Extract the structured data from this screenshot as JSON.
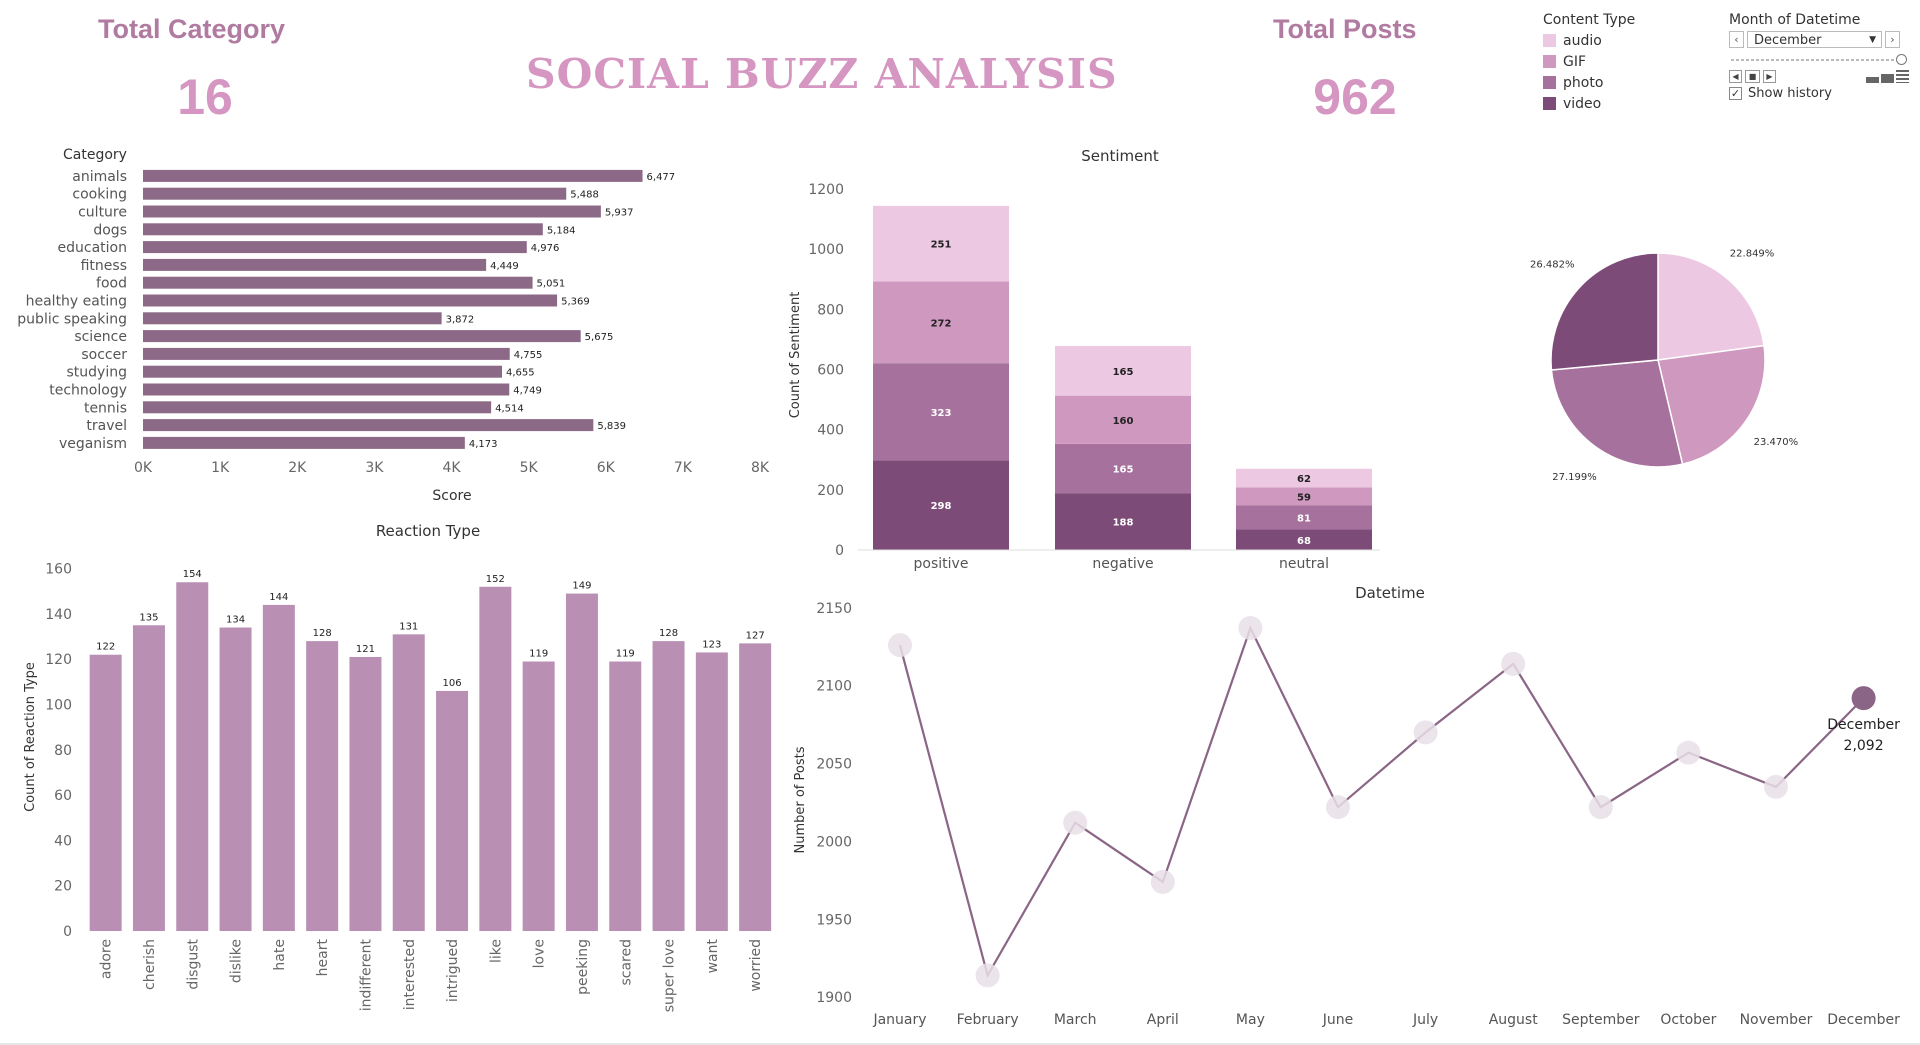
{
  "header": {
    "title": "SOCIAL BUZZ ANALYSIS",
    "kpi_category_label": "Total Category",
    "kpi_category_value": "16",
    "kpi_posts_label": "Total Posts",
    "kpi_posts_value": "962"
  },
  "legend": {
    "title": "Content Type",
    "items": [
      {
        "label": "audio",
        "color": "#ecc8e3"
      },
      {
        "label": "GIF",
        "color": "#cf98bf"
      },
      {
        "label": "photo",
        "color": "#a6719d"
      },
      {
        "label": "video",
        "color": "#7d4b78"
      }
    ]
  },
  "filter": {
    "title": "Month of Datetime",
    "selected": "December",
    "show_history_label": "Show history",
    "show_history_checked": true
  },
  "chart_data": [
    {
      "id": "category",
      "type": "bar",
      "orientation": "horizontal",
      "title": "",
      "header_label": "Category",
      "xlabel": "Score",
      "categories": [
        "animals",
        "cooking",
        "culture",
        "dogs",
        "education",
        "fitness",
        "food",
        "healthy eating",
        "public speaking",
        "science",
        "soccer",
        "studying",
        "technology",
        "tennis",
        "travel",
        "veganism"
      ],
      "values": [
        6477,
        5488,
        5937,
        5184,
        4976,
        4449,
        5051,
        5369,
        3872,
        5675,
        4755,
        4655,
        4749,
        4514,
        5839,
        4173
      ],
      "data_labels": [
        "6,477",
        "5,488",
        "5,937",
        "5,184",
        "4,976",
        "4,449",
        "5,051",
        "5,369",
        "3,872",
        "5,675",
        "4,755",
        "4,655",
        "4,749",
        "4,514",
        "5,839",
        "4,173"
      ],
      "xlim": [
        0,
        8000
      ],
      "xticks": [
        0,
        1000,
        2000,
        3000,
        4000,
        5000,
        6000,
        7000,
        8000
      ],
      "xtick_labels": [
        "0K",
        "1K",
        "2K",
        "3K",
        "4K",
        "5K",
        "6K",
        "7K",
        "8K"
      ],
      "color": "#8c6a87"
    },
    {
      "id": "sentiment",
      "type": "bar",
      "stacked": true,
      "title": "Sentiment",
      "ylabel": "Count of Sentiment",
      "categories": [
        "positive",
        "negative",
        "neutral"
      ],
      "series": [
        {
          "name": "video",
          "values": [
            298,
            188,
            68
          ],
          "color": "#7d4b78"
        },
        {
          "name": "photo",
          "values": [
            323,
            165,
            81
          ],
          "color": "#a6719d"
        },
        {
          "name": "GIF",
          "values": [
            272,
            160,
            59
          ],
          "color": "#cf98bf"
        },
        {
          "name": "audio",
          "values": [
            251,
            165,
            62
          ],
          "color": "#ecc8e3"
        }
      ],
      "ylim": [
        0,
        1250
      ],
      "yticks": [
        0,
        200,
        400,
        600,
        800,
        1000,
        1200
      ]
    },
    {
      "id": "content_share",
      "type": "pie",
      "title": "",
      "slices": [
        {
          "name": "audio",
          "value": 22.849,
          "label": "22.849%",
          "color": "#ecc8e3"
        },
        {
          "name": "GIF",
          "value": 23.47,
          "label": "23.470%",
          "color": "#cf98bf"
        },
        {
          "name": "photo",
          "value": 27.199,
          "label": "27.199%",
          "color": "#a6719d"
        },
        {
          "name": "video",
          "value": 26.482,
          "label": "26.482%",
          "color": "#7d4b78"
        }
      ]
    },
    {
      "id": "reaction_type",
      "type": "bar",
      "title": "Reaction Type",
      "ylabel": "Count of Reaction Type",
      "categories": [
        "adore",
        "cherish",
        "disgust",
        "dislike",
        "hate",
        "heart",
        "indifferent",
        "interested",
        "intrigued",
        "like",
        "love",
        "peeking",
        "scared",
        "super love",
        "want",
        "worried"
      ],
      "values": [
        122,
        135,
        154,
        134,
        144,
        128,
        121,
        131,
        106,
        152,
        119,
        149,
        119,
        128,
        123,
        127
      ],
      "ylim": [
        0,
        170
      ],
      "yticks": [
        0,
        20,
        40,
        60,
        80,
        100,
        120,
        140,
        160
      ],
      "color": "#b990b4"
    },
    {
      "id": "datetime",
      "type": "line",
      "title": "Datetime",
      "ylabel": "Number of Posts",
      "x": [
        "January",
        "February",
        "March",
        "April",
        "May",
        "June",
        "July",
        "August",
        "September",
        "October",
        "November",
        "December"
      ],
      "values": [
        2126,
        1914,
        2012,
        1974,
        2137,
        2022,
        2070,
        2114,
        2022,
        2057,
        2035,
        2092
      ],
      "ylim": [
        1895,
        2155
      ],
      "yticks": [
        1900,
        1950,
        2000,
        2050,
        2100,
        2150
      ],
      "highlight": {
        "label": "December",
        "value_label": "2,092"
      },
      "color": "#8a6585"
    }
  ]
}
